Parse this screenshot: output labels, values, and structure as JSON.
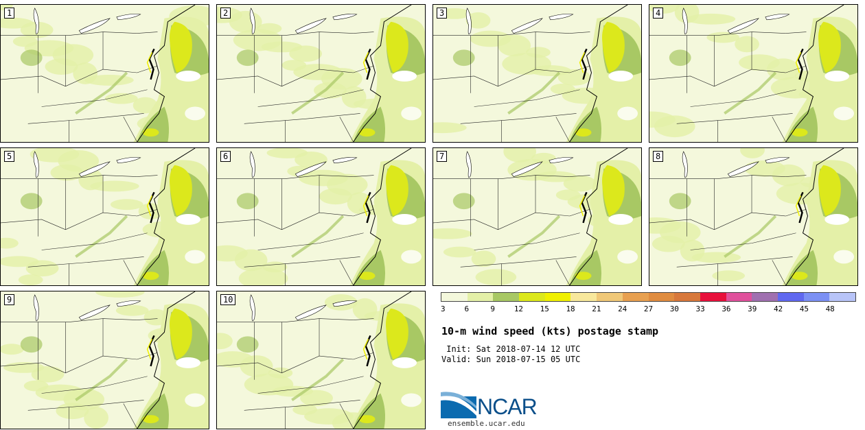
{
  "panels": [
    {
      "label": "1"
    },
    {
      "label": "2"
    },
    {
      "label": "3"
    },
    {
      "label": "4"
    },
    {
      "label": "5"
    },
    {
      "label": "6"
    },
    {
      "label": "7"
    },
    {
      "label": "8"
    },
    {
      "label": "9"
    },
    {
      "label": "10"
    }
  ],
  "colorbar": {
    "colors": [
      "#f4f8dc",
      "#e4f0a8",
      "#a8c864",
      "#dce81c",
      "#f0f000",
      "#f8e89c",
      "#f0c878",
      "#e8a050",
      "#e08c40",
      "#d8783c",
      "#e8103c",
      "#e0509c",
      "#a070b0",
      "#6068f0",
      "#7c90f4",
      "#b8c4f8"
    ],
    "labels": [
      "3",
      "6",
      "9",
      "12",
      "15",
      "18",
      "21",
      "24",
      "27",
      "30",
      "33",
      "36",
      "39",
      "42",
      "45",
      "48"
    ]
  },
  "title": "10-m wind speed (kts) postage stamp",
  "init": " Init: Sat 2018-07-14 12 UTC",
  "valid": "Valid: Sun 2018-07-15 05 UTC",
  "logo": {
    "text": "NCAR"
  },
  "url": "ensemble.ucar.edu"
}
